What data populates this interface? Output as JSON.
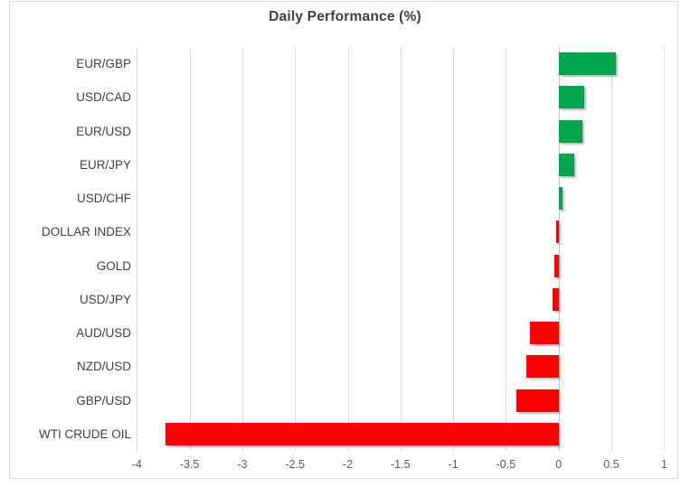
{
  "title": "Daily Performance (%)",
  "chart_data": {
    "type": "bar",
    "orientation": "horizontal",
    "title": "Daily Performance (%)",
    "categories": [
      "EUR/GBP",
      "USD/CAD",
      "EUR/USD",
      "EUR/JPY",
      "USD/CHF",
      "DOLLAR INDEX",
      "GOLD",
      "USD/JPY",
      "AUD/USD",
      "NZD/USD",
      "GBP/USD",
      "WTI CRUDE OIL"
    ],
    "values": [
      0.54,
      0.24,
      0.23,
      0.15,
      0.04,
      -0.02,
      -0.04,
      -0.06,
      -0.27,
      -0.31,
      -0.4,
      -3.73
    ],
    "x_ticks": [
      "-4",
      "-3.5",
      "-3",
      "-2.5",
      "-2",
      "-1.5",
      "-1",
      "-0.5",
      "0",
      "0.5",
      "1"
    ],
    "x_tick_values": [
      -4,
      -3.5,
      -3,
      -2.5,
      -2,
      -1.5,
      -1,
      -0.5,
      0,
      0.5,
      1
    ],
    "xlim": [
      -4,
      1
    ],
    "xlabel": "",
    "ylabel": "",
    "grid": true,
    "legend": "none",
    "positive_color": "#00A64E",
    "negative_color": "#FF0000",
    "gridline_color": "#D9D9D9",
    "title_color": "#404040",
    "label_color": "#404040",
    "tick_color": "#595959"
  }
}
